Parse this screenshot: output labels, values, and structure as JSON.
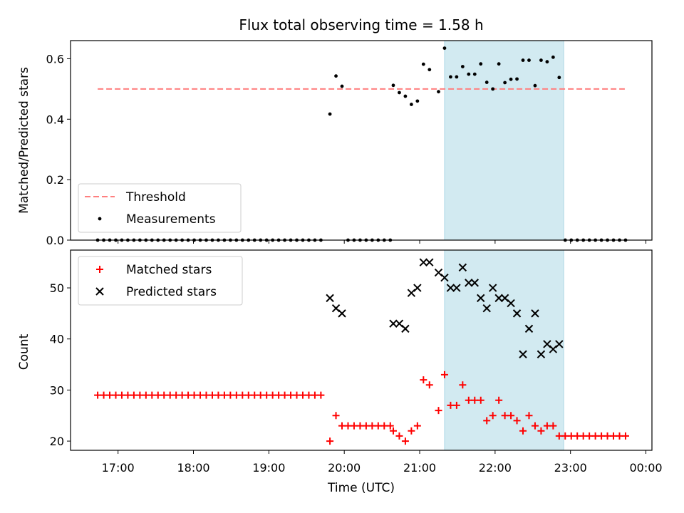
{
  "chart_data": {
    "title": "Flux total observing time = 1.58 h",
    "xlabel": "Time (UTC)",
    "x_tick_labels": [
      "17:00",
      "18:00",
      "19:00",
      "20:00",
      "21:00",
      "22:00",
      "23:00",
      "00:00"
    ],
    "x_ticks_hours": [
      17,
      18,
      19,
      20,
      21,
      22,
      23,
      24
    ],
    "xlim_hours": [
      16.37,
      24.08
    ],
    "observing_window_hours": [
      21.33,
      22.91
    ],
    "observing_window_color": "#add8e6",
    "panels": [
      {
        "type": "scatter",
        "ylabel": "Matched/Predicted stars",
        "ylim": [
          0.0,
          0.66
        ],
        "y_ticks": [
          0.0,
          0.2,
          0.4,
          0.6
        ],
        "y_tick_labels": [
          "0.0",
          "0.2",
          "0.4",
          "0.6"
        ],
        "legend_position": "lower-left",
        "threshold": {
          "name": "Threshold",
          "y": 0.5,
          "x_range": [
            16.73,
            23.72
          ],
          "color": "#ff7f7f",
          "style": "dashed"
        },
        "series": [
          {
            "name": "Measurements",
            "color": "#000000",
            "marker": "dot",
            "points": [
              [
                16.73,
                0
              ],
              [
                16.81,
                0
              ],
              [
                16.89,
                0
              ],
              [
                16.97,
                0
              ],
              [
                17.05,
                0
              ],
              [
                17.13,
                0
              ],
              [
                17.21,
                0
              ],
              [
                17.29,
                0
              ],
              [
                17.37,
                0
              ],
              [
                17.45,
                0
              ],
              [
                17.53,
                0
              ],
              [
                17.61,
                0
              ],
              [
                17.69,
                0
              ],
              [
                17.77,
                0
              ],
              [
                17.85,
                0
              ],
              [
                17.93,
                0
              ],
              [
                18.01,
                0
              ],
              [
                18.09,
                0
              ],
              [
                18.17,
                0
              ],
              [
                18.25,
                0
              ],
              [
                18.33,
                0
              ],
              [
                18.41,
                0
              ],
              [
                18.49,
                0
              ],
              [
                18.57,
                0
              ],
              [
                18.65,
                0
              ],
              [
                18.73,
                0
              ],
              [
                18.81,
                0
              ],
              [
                18.89,
                0
              ],
              [
                18.97,
                0
              ],
              [
                19.05,
                0
              ],
              [
                19.13,
                0
              ],
              [
                19.21,
                0
              ],
              [
                19.29,
                0
              ],
              [
                19.37,
                0
              ],
              [
                19.45,
                0
              ],
              [
                19.53,
                0
              ],
              [
                19.61,
                0
              ],
              [
                19.69,
                0
              ],
              [
                19.81,
                0.417
              ],
              [
                19.89,
                0.543
              ],
              [
                19.97,
                0.509
              ],
              [
                20.05,
                0
              ],
              [
                20.13,
                0
              ],
              [
                20.21,
                0
              ],
              [
                20.29,
                0
              ],
              [
                20.37,
                0
              ],
              [
                20.45,
                0
              ],
              [
                20.53,
                0
              ],
              [
                20.61,
                0
              ],
              [
                20.65,
                0.512
              ],
              [
                20.73,
                0.488
              ],
              [
                20.81,
                0.476
              ],
              [
                20.89,
                0.449
              ],
              [
                20.97,
                0.46
              ],
              [
                21.05,
                0.582
              ],
              [
                21.13,
                0.564
              ],
              [
                21.25,
                0.491
              ],
              [
                21.33,
                0.635
              ],
              [
                21.41,
                0.54
              ],
              [
                21.49,
                0.54
              ],
              [
                21.57,
                0.574
              ],
              [
                21.65,
                0.549
              ],
              [
                21.73,
                0.549
              ],
              [
                21.81,
                0.583
              ],
              [
                21.89,
                0.522
              ],
              [
                21.97,
                0.5
              ],
              [
                22.05,
                0.583
              ],
              [
                22.13,
                0.521
              ],
              [
                22.21,
                0.532
              ],
              [
                22.29,
                0.533
              ],
              [
                22.37,
                0.595
              ],
              [
                22.45,
                0.595
              ],
              [
                22.53,
                0.511
              ],
              [
                22.61,
                0.595
              ],
              [
                22.69,
                0.59
              ],
              [
                22.77,
                0.605
              ],
              [
                22.85,
                0.538
              ],
              [
                22.93,
                0
              ],
              [
                23.01,
                0
              ],
              [
                23.09,
                0
              ],
              [
                23.17,
                0
              ],
              [
                23.25,
                0
              ],
              [
                23.33,
                0
              ],
              [
                23.41,
                0
              ],
              [
                23.49,
                0
              ],
              [
                23.57,
                0
              ],
              [
                23.65,
                0
              ],
              [
                23.73,
                0
              ]
            ]
          }
        ]
      },
      {
        "type": "scatter",
        "ylabel": "Count",
        "ylim": [
          18.2,
          57.4
        ],
        "y_ticks": [
          20,
          30,
          40,
          50
        ],
        "y_tick_labels": [
          "20",
          "30",
          "40",
          "50"
        ],
        "legend_position": "upper-left",
        "series": [
          {
            "name": "Matched stars",
            "color": "#ff0000",
            "marker": "plus",
            "points": [
              [
                16.73,
                29
              ],
              [
                16.81,
                29
              ],
              [
                16.89,
                29
              ],
              [
                16.97,
                29
              ],
              [
                17.05,
                29
              ],
              [
                17.13,
                29
              ],
              [
                17.21,
                29
              ],
              [
                17.29,
                29
              ],
              [
                17.37,
                29
              ],
              [
                17.45,
                29
              ],
              [
                17.53,
                29
              ],
              [
                17.61,
                29
              ],
              [
                17.69,
                29
              ],
              [
                17.77,
                29
              ],
              [
                17.85,
                29
              ],
              [
                17.93,
                29
              ],
              [
                18.01,
                29
              ],
              [
                18.09,
                29
              ],
              [
                18.17,
                29
              ],
              [
                18.25,
                29
              ],
              [
                18.33,
                29
              ],
              [
                18.41,
                29
              ],
              [
                18.49,
                29
              ],
              [
                18.57,
                29
              ],
              [
                18.65,
                29
              ],
              [
                18.73,
                29
              ],
              [
                18.81,
                29
              ],
              [
                18.89,
                29
              ],
              [
                18.97,
                29
              ],
              [
                19.05,
                29
              ],
              [
                19.13,
                29
              ],
              [
                19.21,
                29
              ],
              [
                19.29,
                29
              ],
              [
                19.37,
                29
              ],
              [
                19.45,
                29
              ],
              [
                19.53,
                29
              ],
              [
                19.61,
                29
              ],
              [
                19.69,
                29
              ],
              [
                19.81,
                20
              ],
              [
                19.89,
                25
              ],
              [
                19.97,
                23
              ],
              [
                20.05,
                23
              ],
              [
                20.13,
                23
              ],
              [
                20.21,
                23
              ],
              [
                20.29,
                23
              ],
              [
                20.37,
                23
              ],
              [
                20.45,
                23
              ],
              [
                20.53,
                23
              ],
              [
                20.61,
                23
              ],
              [
                20.65,
                22
              ],
              [
                20.73,
                21
              ],
              [
                20.81,
                20
              ],
              [
                20.89,
                22
              ],
              [
                20.97,
                23
              ],
              [
                21.05,
                32
              ],
              [
                21.13,
                31
              ],
              [
                21.25,
                26
              ],
              [
                21.33,
                33
              ],
              [
                21.41,
                27
              ],
              [
                21.49,
                27
              ],
              [
                21.57,
                31
              ],
              [
                21.65,
                28
              ],
              [
                21.73,
                28
              ],
              [
                21.81,
                28
              ],
              [
                21.89,
                24
              ],
              [
                21.97,
                25
              ],
              [
                22.05,
                28
              ],
              [
                22.13,
                25
              ],
              [
                22.21,
                25
              ],
              [
                22.29,
                24
              ],
              [
                22.37,
                22
              ],
              [
                22.45,
                25
              ],
              [
                22.53,
                23
              ],
              [
                22.61,
                22
              ],
              [
                22.69,
                23
              ],
              [
                22.77,
                23
              ],
              [
                22.85,
                21
              ],
              [
                22.93,
                21
              ],
              [
                23.01,
                21
              ],
              [
                23.09,
                21
              ],
              [
                23.17,
                21
              ],
              [
                23.25,
                21
              ],
              [
                23.33,
                21
              ],
              [
                23.41,
                21
              ],
              [
                23.49,
                21
              ],
              [
                23.57,
                21
              ],
              [
                23.65,
                21
              ],
              [
                23.73,
                21
              ]
            ]
          },
          {
            "name": "Predicted stars",
            "color": "#000000",
            "marker": "x",
            "points": [
              [
                19.81,
                48
              ],
              [
                19.89,
                46
              ],
              [
                19.97,
                45
              ],
              [
                20.65,
                43
              ],
              [
                20.73,
                43
              ],
              [
                20.81,
                42
              ],
              [
                20.89,
                49
              ],
              [
                20.97,
                50
              ],
              [
                21.05,
                55
              ],
              [
                21.13,
                55
              ],
              [
                21.25,
                53
              ],
              [
                21.33,
                52
              ],
              [
                21.41,
                50
              ],
              [
                21.49,
                50
              ],
              [
                21.57,
                54
              ],
              [
                21.65,
                51
              ],
              [
                21.73,
                51
              ],
              [
                21.81,
                48
              ],
              [
                21.89,
                46
              ],
              [
                21.97,
                50
              ],
              [
                22.05,
                48
              ],
              [
                22.13,
                48
              ],
              [
                22.21,
                47
              ],
              [
                22.29,
                45
              ],
              [
                22.37,
                37
              ],
              [
                22.45,
                42
              ],
              [
                22.53,
                45
              ],
              [
                22.61,
                37
              ],
              [
                22.69,
                39
              ],
              [
                22.77,
                38
              ],
              [
                22.85,
                39
              ]
            ]
          }
        ]
      }
    ]
  }
}
